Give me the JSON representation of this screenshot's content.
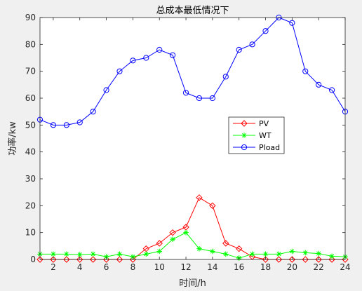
{
  "chart_data": {
    "type": "line",
    "title": "总成本最低情况下",
    "xlabel": "时间/h",
    "ylabel": "功率/kw",
    "xlim": [
      1,
      24
    ],
    "ylim": [
      0,
      90
    ],
    "xticks": [
      2,
      4,
      6,
      8,
      10,
      12,
      14,
      16,
      18,
      20,
      22,
      24
    ],
    "yticks": [
      0,
      10,
      20,
      30,
      40,
      50,
      60,
      70,
      80,
      90
    ],
    "grid": false,
    "legend_position": "center-right",
    "x": [
      1,
      2,
      3,
      4,
      5,
      6,
      7,
      8,
      9,
      10,
      11,
      12,
      13,
      14,
      15,
      16,
      17,
      18,
      19,
      20,
      21,
      22,
      23,
      24
    ],
    "series": [
      {
        "name": "PV",
        "color": "#ff0000",
        "marker": "diamond",
        "values": [
          0,
          0,
          0,
          0,
          0,
          0,
          0,
          0,
          4,
          6,
          10,
          12,
          23,
          20,
          6,
          4,
          1,
          0,
          0,
          0,
          0,
          0,
          0,
          0
        ]
      },
      {
        "name": "WT",
        "color": "#00ff00",
        "marker": "asterisk",
        "values": [
          2,
          2,
          2,
          1.8,
          2,
          1,
          2,
          1,
          2,
          3,
          7.5,
          10,
          4,
          3,
          2,
          0.5,
          2,
          2,
          2,
          3,
          2.5,
          2.2,
          1.2,
          1
        ]
      },
      {
        "name": "Pload",
        "color": "#0000ff",
        "marker": "circle",
        "values": [
          52,
          50,
          50,
          51,
          55,
          63,
          70,
          74,
          75,
          78,
          76,
          62,
          60,
          60,
          68,
          78,
          80,
          85,
          90,
          88,
          70,
          65,
          63,
          55
        ]
      }
    ]
  }
}
